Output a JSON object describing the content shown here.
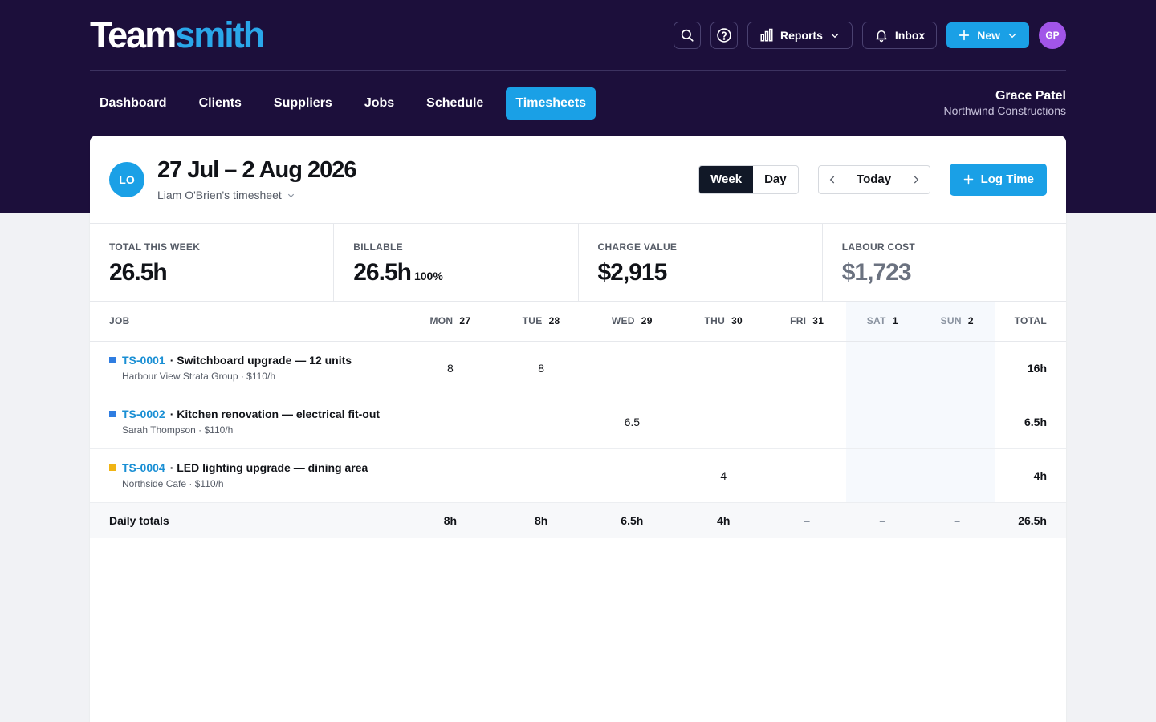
{
  "app": {
    "logo_part1": "Team",
    "logo_part2": "smith"
  },
  "header": {
    "reports_label": "Reports",
    "inbox_label": "Inbox",
    "new_label": "New",
    "avatar_initials": "GP"
  },
  "nav": {
    "tabs": [
      {
        "label": "Dashboard"
      },
      {
        "label": "Clients"
      },
      {
        "label": "Suppliers"
      },
      {
        "label": "Jobs"
      },
      {
        "label": "Schedule"
      },
      {
        "label": "Timesheets",
        "active": true
      }
    ],
    "user_name": "Grace Patel",
    "company": "Northwind Constructions"
  },
  "timesheet": {
    "initials": "LO",
    "range": "27 Jul – 2 Aug 2026",
    "owner": "Liam O'Brien's timesheet",
    "view_week": "Week",
    "view_day": "Day",
    "today_label": "Today",
    "log_label": "Log Time"
  },
  "stats": [
    {
      "label": "TOTAL THIS WEEK",
      "value": "26.5h"
    },
    {
      "label": "BILLABLE",
      "value": "26.5h",
      "pct": "100%"
    },
    {
      "label": "CHARGE VALUE",
      "value": "$2,915"
    },
    {
      "label": "LABOUR COST",
      "value": "$1,723"
    }
  ],
  "table": {
    "job_header": "JOB",
    "total_header": "TOTAL",
    "days": [
      {
        "dow": "MON",
        "num": "27"
      },
      {
        "dow": "TUE",
        "num": "28"
      },
      {
        "dow": "WED",
        "num": "29"
      },
      {
        "dow": "THU",
        "num": "30"
      },
      {
        "dow": "FRI",
        "num": "31"
      },
      {
        "dow": "SAT",
        "num": "1"
      },
      {
        "dow": "SUN",
        "num": "2"
      }
    ],
    "rows": [
      {
        "code": "TS-0001",
        "name": "· Switchboard upgrade — 12 units",
        "sub": "Harbour View Strata Group · $110/h",
        "color": "#2f7de1",
        "hours": [
          "8",
          "8",
          "",
          "",
          "",
          "",
          ""
        ],
        "total": "16h"
      },
      {
        "code": "TS-0002",
        "name": "· Kitchen renovation — electrical fit-out",
        "sub": "Sarah Thompson · $110/h",
        "color": "#2f7de1",
        "hours": [
          "",
          "",
          "6.5",
          "",
          "",
          "",
          ""
        ],
        "total": "6.5h"
      },
      {
        "code": "TS-0004",
        "name": "· LED lighting upgrade — dining area",
        "sub": "Northside Cafe · $110/h",
        "color": "#f0b414",
        "hours": [
          "",
          "",
          "",
          "4",
          "",
          "",
          ""
        ],
        "total": "4h"
      }
    ],
    "totals_label": "Daily totals",
    "daily_totals": [
      "8h",
      "8h",
      "6.5h",
      "4h",
      "–",
      "–",
      "–"
    ],
    "grand_total": "26.5h"
  }
}
